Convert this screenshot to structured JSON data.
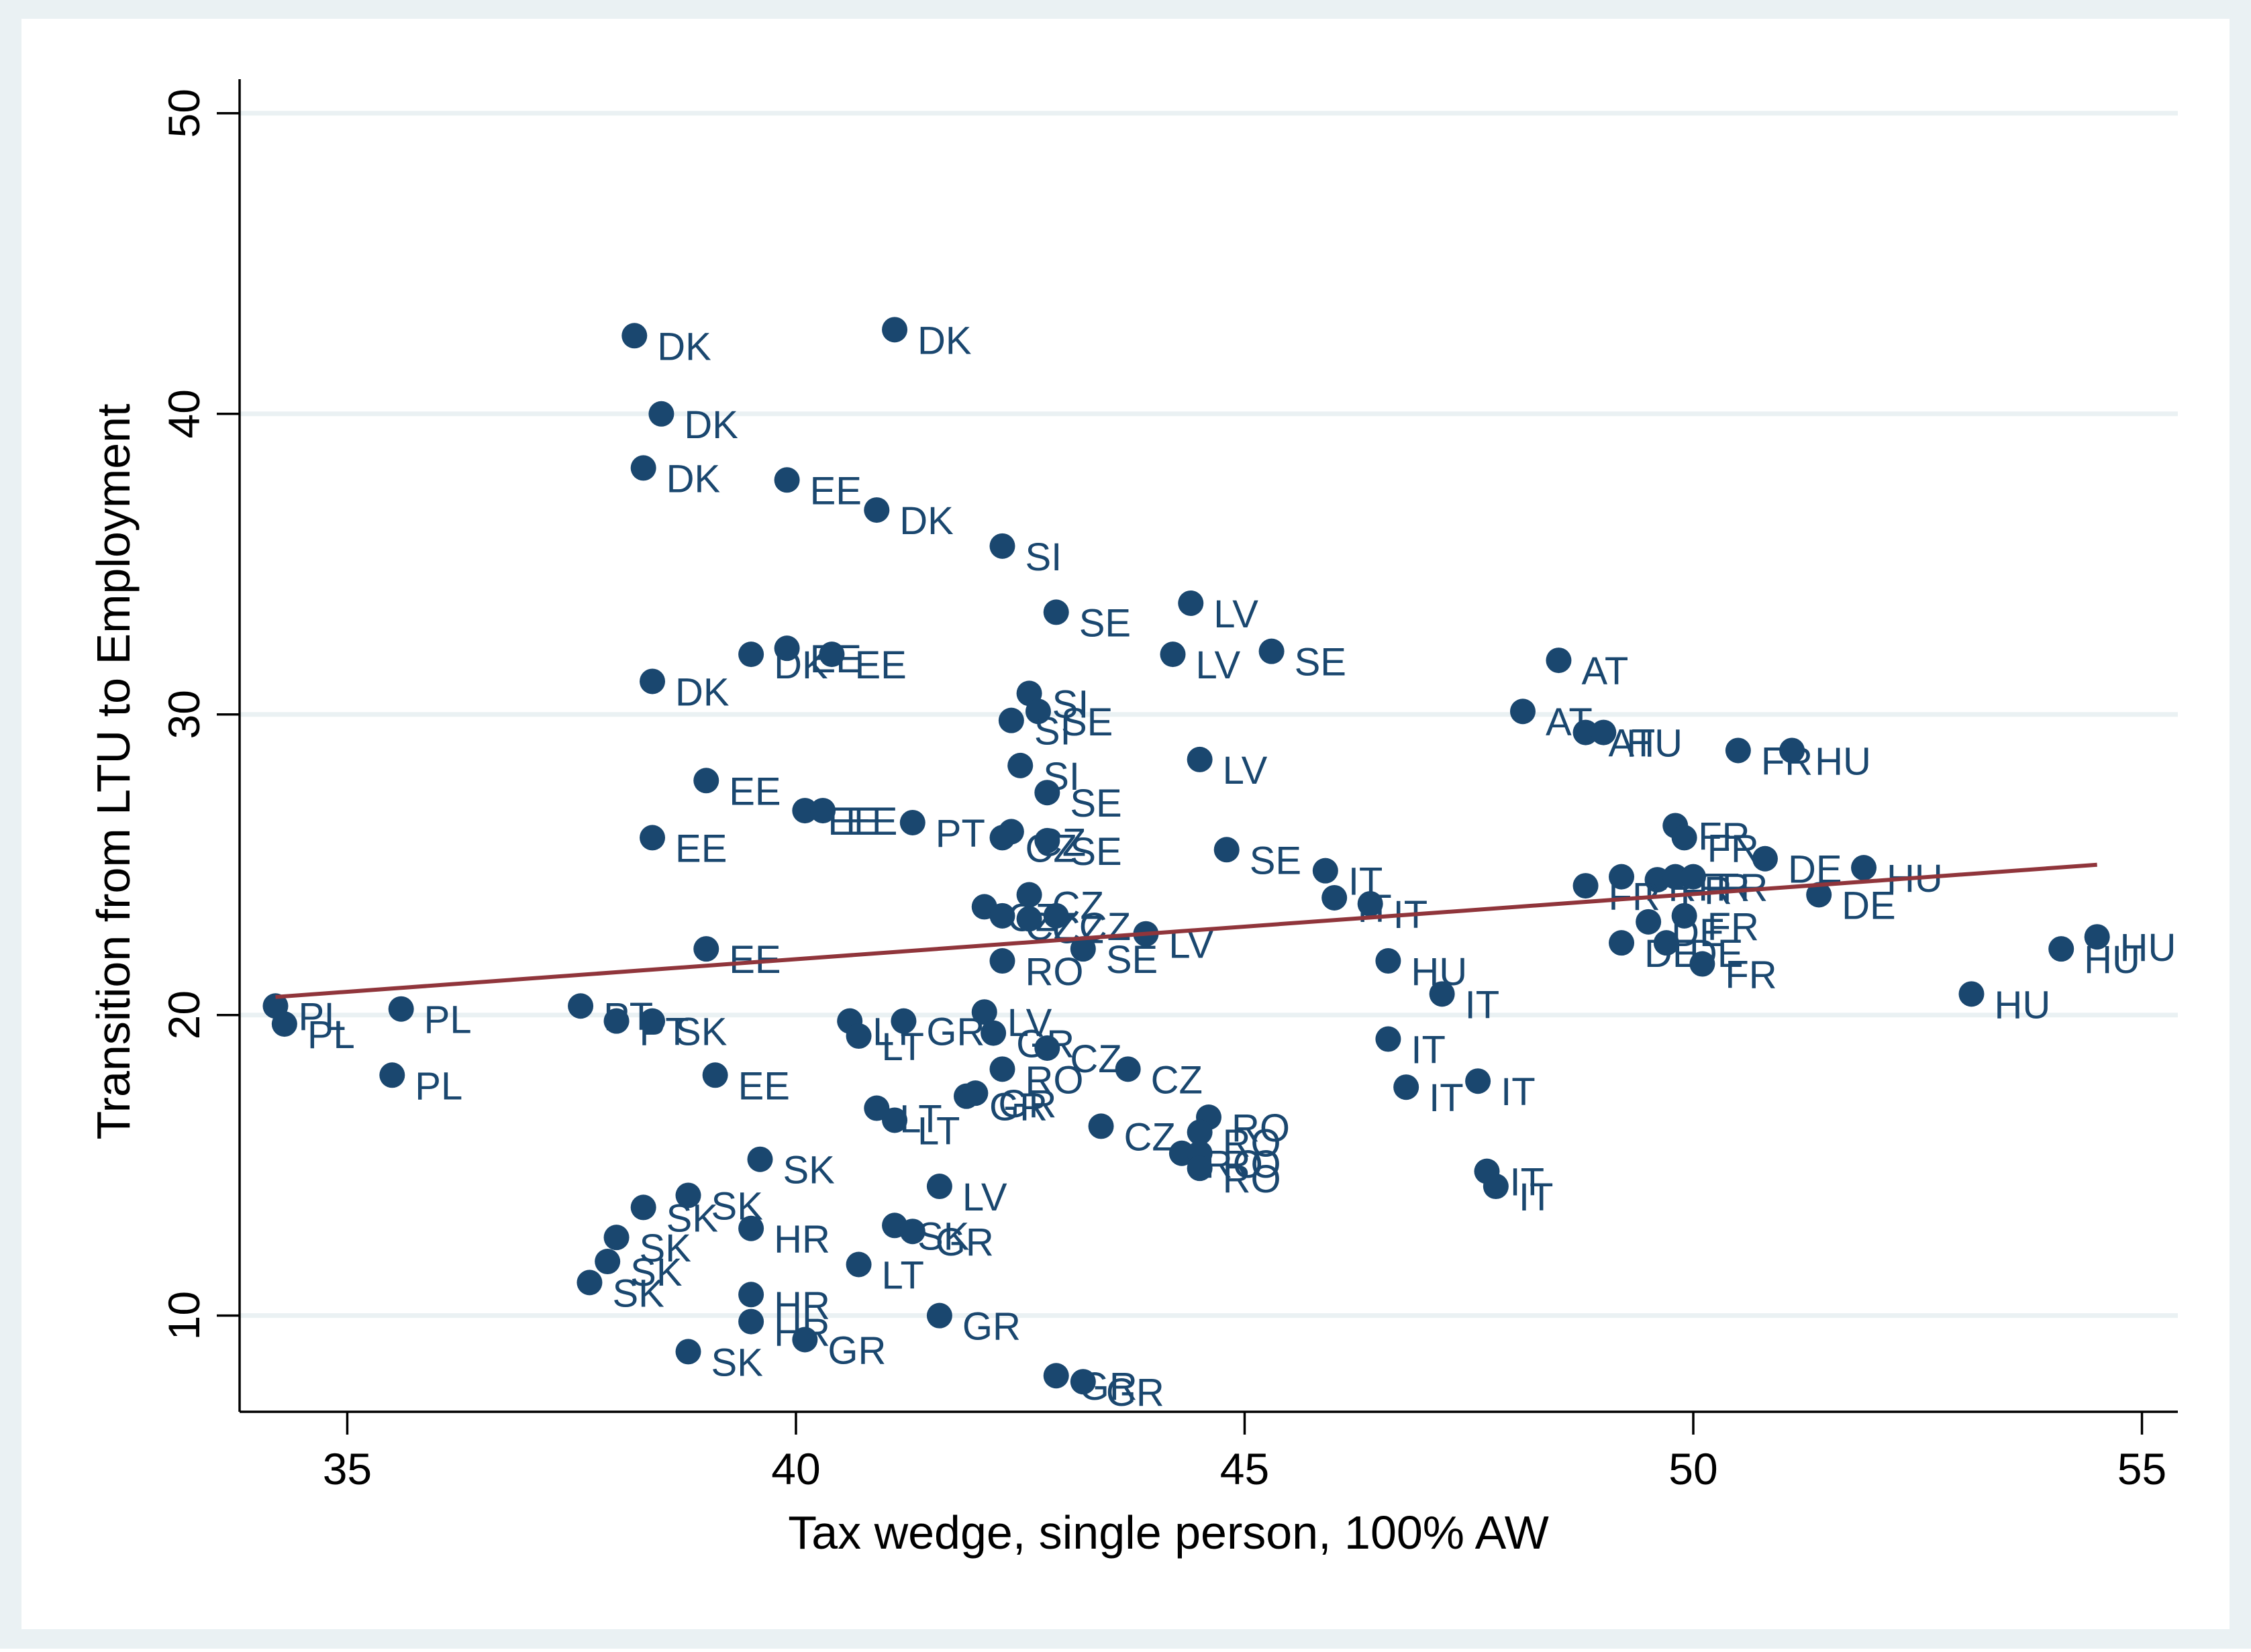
{
  "chart_data": {
    "type": "scatter",
    "title": "",
    "xlabel": "Tax wedge, single person, 100% AW",
    "ylabel": "Transition from LTU to Employment",
    "xlim": [
      33.8,
      55.4
    ],
    "ylim": [
      6.8,
      51
    ],
    "xticks": [
      35,
      40,
      45,
      50,
      55
    ],
    "yticks": [
      10,
      20,
      30,
      40,
      50
    ],
    "grid": "horizontal",
    "legend": "none",
    "colors": {
      "outer_background": "#eaf1f3",
      "plot_background": "#ffffff",
      "gridline": "#eaf1f3",
      "marker": "#1a476f",
      "label": "#1a476f",
      "fit_line": "#90353b",
      "axis": "#000000"
    },
    "fit_line": {
      "x": [
        34.2,
        54.5
      ],
      "y": [
        20.6,
        25.0
      ]
    },
    "points": [
      {
        "x": 38.2,
        "y": 42.6,
        "label": "DK"
      },
      {
        "x": 41.1,
        "y": 42.8,
        "label": "DK"
      },
      {
        "x": 38.5,
        "y": 40.0,
        "label": "DK"
      },
      {
        "x": 38.3,
        "y": 38.2,
        "label": "DK"
      },
      {
        "x": 39.9,
        "y": 37.8,
        "label": "EE"
      },
      {
        "x": 40.9,
        "y": 36.8,
        "label": "DK"
      },
      {
        "x": 42.3,
        "y": 35.6,
        "label": "SI"
      },
      {
        "x": 42.9,
        "y": 33.4,
        "label": "SE"
      },
      {
        "x": 44.4,
        "y": 33.7,
        "label": "LV"
      },
      {
        "x": 39.5,
        "y": 32.0,
        "label": "DK"
      },
      {
        "x": 39.9,
        "y": 32.2,
        "label": "EE"
      },
      {
        "x": 40.4,
        "y": 32.0,
        "label": "EE"
      },
      {
        "x": 44.2,
        "y": 32.0,
        "label": "LV"
      },
      {
        "x": 45.3,
        "y": 32.1,
        "label": "SE"
      },
      {
        "x": 38.4,
        "y": 31.1,
        "label": "DK"
      },
      {
        "x": 48.5,
        "y": 31.8,
        "label": "AT"
      },
      {
        "x": 42.6,
        "y": 30.7,
        "label": "SI"
      },
      {
        "x": 42.7,
        "y": 30.1,
        "label": "SE"
      },
      {
        "x": 42.4,
        "y": 29.8,
        "label": "SI"
      },
      {
        "x": 48.1,
        "y": 30.1,
        "label": "AT"
      },
      {
        "x": 48.8,
        "y": 29.4,
        "label": "AT"
      },
      {
        "x": 49.0,
        "y": 29.4,
        "label": "HU"
      },
      {
        "x": 50.5,
        "y": 28.8,
        "label": "FR"
      },
      {
        "x": 51.1,
        "y": 28.8,
        "label": "HU"
      },
      {
        "x": 42.5,
        "y": 28.3,
        "label": "SI"
      },
      {
        "x": 44.5,
        "y": 28.5,
        "label": "LV"
      },
      {
        "x": 39.0,
        "y": 27.8,
        "label": "EE"
      },
      {
        "x": 42.8,
        "y": 27.4,
        "label": "SE"
      },
      {
        "x": 40.1,
        "y": 26.8,
        "label": "EE"
      },
      {
        "x": 40.3,
        "y": 26.8,
        "label": "EE"
      },
      {
        "x": 41.3,
        "y": 26.4,
        "label": "PT"
      },
      {
        "x": 42.4,
        "y": 26.1,
        "label": "CZ"
      },
      {
        "x": 42.3,
        "y": 25.9,
        "label": "CZ"
      },
      {
        "x": 42.8,
        "y": 25.8,
        "label": "SE"
      },
      {
        "x": 38.4,
        "y": 25.9,
        "label": "EE"
      },
      {
        "x": 49.8,
        "y": 26.3,
        "label": "FR"
      },
      {
        "x": 49.9,
        "y": 25.9,
        "label": "FR"
      },
      {
        "x": 44.8,
        "y": 25.5,
        "label": "SE"
      },
      {
        "x": 50.8,
        "y": 25.2,
        "label": "DE"
      },
      {
        "x": 51.9,
        "y": 24.9,
        "label": "HU"
      },
      {
        "x": 45.9,
        "y": 24.8,
        "label": "IT"
      },
      {
        "x": 49.2,
        "y": 24.6,
        "label": "FR"
      },
      {
        "x": 49.6,
        "y": 24.5,
        "label": "FR"
      },
      {
        "x": 49.8,
        "y": 24.6,
        "label": "FR"
      },
      {
        "x": 50.0,
        "y": 24.6,
        "label": "FR"
      },
      {
        "x": 48.8,
        "y": 24.3,
        "label": "FR"
      },
      {
        "x": 51.4,
        "y": 24.0,
        "label": "DE"
      },
      {
        "x": 42.6,
        "y": 24.0,
        "label": "CZ"
      },
      {
        "x": 46.0,
        "y": 23.9,
        "label": "IT"
      },
      {
        "x": 46.4,
        "y": 23.7,
        "label": "IT"
      },
      {
        "x": 42.1,
        "y": 23.6,
        "label": "CZ"
      },
      {
        "x": 42.3,
        "y": 23.3,
        "label": "CZ"
      },
      {
        "x": 42.6,
        "y": 23.2,
        "label": "CZ"
      },
      {
        "x": 42.9,
        "y": 23.3,
        "label": "CZ"
      },
      {
        "x": 43.9,
        "y": 22.7,
        "label": "LV"
      },
      {
        "x": 49.9,
        "y": 23.3,
        "label": "FR"
      },
      {
        "x": 49.5,
        "y": 23.1,
        "label": "DE"
      },
      {
        "x": 39.0,
        "y": 22.2,
        "label": "EE"
      },
      {
        "x": 43.2,
        "y": 22.2,
        "label": "SE"
      },
      {
        "x": 49.2,
        "y": 22.4,
        "label": "DE"
      },
      {
        "x": 49.7,
        "y": 22.4,
        "label": "DE"
      },
      {
        "x": 42.3,
        "y": 21.8,
        "label": "RO"
      },
      {
        "x": 46.6,
        "y": 21.8,
        "label": "HU"
      },
      {
        "x": 50.1,
        "y": 21.7,
        "label": "FR"
      },
      {
        "x": 54.5,
        "y": 22.6,
        "label": "HU"
      },
      {
        "x": 54.1,
        "y": 22.2,
        "label": "HU"
      },
      {
        "x": 34.2,
        "y": 20.3,
        "label": "PL"
      },
      {
        "x": 34.3,
        "y": 19.7,
        "label": "PL"
      },
      {
        "x": 35.6,
        "y": 20.2,
        "label": "PL"
      },
      {
        "x": 37.6,
        "y": 20.3,
        "label": "PT"
      },
      {
        "x": 38.0,
        "y": 19.8,
        "label": "PT"
      },
      {
        "x": 38.4,
        "y": 19.8,
        "label": "SK"
      },
      {
        "x": 47.2,
        "y": 20.7,
        "label": "IT"
      },
      {
        "x": 53.1,
        "y": 20.7,
        "label": "HU"
      },
      {
        "x": 40.6,
        "y": 19.8,
        "label": "LT"
      },
      {
        "x": 40.7,
        "y": 19.3,
        "label": "LT"
      },
      {
        "x": 41.2,
        "y": 19.8,
        "label": "GR"
      },
      {
        "x": 42.1,
        "y": 20.1,
        "label": "LV"
      },
      {
        "x": 42.2,
        "y": 19.4,
        "label": "GR"
      },
      {
        "x": 42.8,
        "y": 18.9,
        "label": "CZ"
      },
      {
        "x": 46.6,
        "y": 19.2,
        "label": "IT"
      },
      {
        "x": 35.5,
        "y": 18.0,
        "label": "PL"
      },
      {
        "x": 39.1,
        "y": 18.0,
        "label": "EE"
      },
      {
        "x": 42.3,
        "y": 18.2,
        "label": "RO"
      },
      {
        "x": 43.7,
        "y": 18.2,
        "label": "CZ"
      },
      {
        "x": 46.8,
        "y": 17.6,
        "label": "IT"
      },
      {
        "x": 47.6,
        "y": 17.8,
        "label": "IT"
      },
      {
        "x": 41.9,
        "y": 17.3,
        "label": "GR"
      },
      {
        "x": 42.0,
        "y": 17.4,
        "label": "GR"
      },
      {
        "x": 40.9,
        "y": 16.9,
        "label": "LT"
      },
      {
        "x": 41.1,
        "y": 16.5,
        "label": "LT"
      },
      {
        "x": 43.4,
        "y": 16.3,
        "label": "CZ"
      },
      {
        "x": 44.6,
        "y": 16.6,
        "label": "RO"
      },
      {
        "x": 44.5,
        "y": 16.1,
        "label": "RO"
      },
      {
        "x": 44.3,
        "y": 15.4,
        "label": "RO"
      },
      {
        "x": 44.5,
        "y": 15.4,
        "label": "RO"
      },
      {
        "x": 44.5,
        "y": 14.9,
        "label": "RO"
      },
      {
        "x": 39.6,
        "y": 15.2,
        "label": "SK"
      },
      {
        "x": 47.7,
        "y": 14.8,
        "label": "IT"
      },
      {
        "x": 47.8,
        "y": 14.3,
        "label": "IT"
      },
      {
        "x": 41.6,
        "y": 14.3,
        "label": "LV"
      },
      {
        "x": 38.8,
        "y": 14.0,
        "label": "SK"
      },
      {
        "x": 38.3,
        "y": 13.6,
        "label": "SK"
      },
      {
        "x": 39.5,
        "y": 12.9,
        "label": "HR"
      },
      {
        "x": 41.1,
        "y": 13.0,
        "label": "SK"
      },
      {
        "x": 41.3,
        "y": 12.8,
        "label": "GR"
      },
      {
        "x": 38.0,
        "y": 12.6,
        "label": "SK"
      },
      {
        "x": 37.9,
        "y": 11.8,
        "label": "SK"
      },
      {
        "x": 40.7,
        "y": 11.7,
        "label": "LT"
      },
      {
        "x": 37.7,
        "y": 11.1,
        "label": "SK"
      },
      {
        "x": 39.5,
        "y": 10.7,
        "label": "HR"
      },
      {
        "x": 41.6,
        "y": 10.0,
        "label": "GR"
      },
      {
        "x": 39.5,
        "y": 9.8,
        "label": "HR"
      },
      {
        "x": 40.1,
        "y": 9.2,
        "label": "GR"
      },
      {
        "x": 38.8,
        "y": 8.8,
        "label": "SK"
      },
      {
        "x": 42.9,
        "y": 8.0,
        "label": "GR"
      },
      {
        "x": 43.2,
        "y": 7.8,
        "label": "GR"
      }
    ]
  }
}
